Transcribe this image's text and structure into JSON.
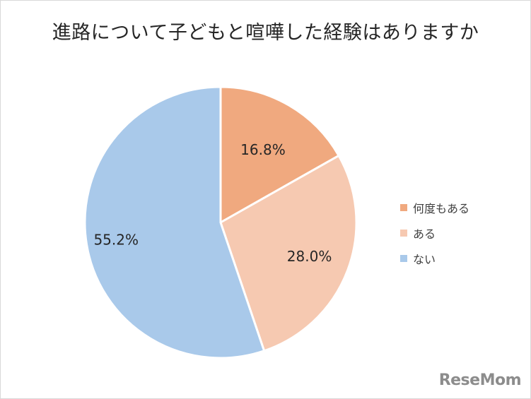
{
  "chart_data": {
    "type": "pie",
    "title": "進路について子どもと喧嘩した経験はありますか",
    "categories": [
      "何度もある",
      "ある",
      "ない"
    ],
    "values": [
      16.8,
      28.0,
      55.2
    ],
    "value_labels": [
      "16.8%",
      "28.0%",
      "55.2%"
    ],
    "colors": [
      "#f0a97f",
      "#f6c9b1",
      "#a9c9ea"
    ],
    "start_angle_deg": 0,
    "direction": "clockwise",
    "legend_position": "right"
  },
  "watermark": "ReseMom"
}
